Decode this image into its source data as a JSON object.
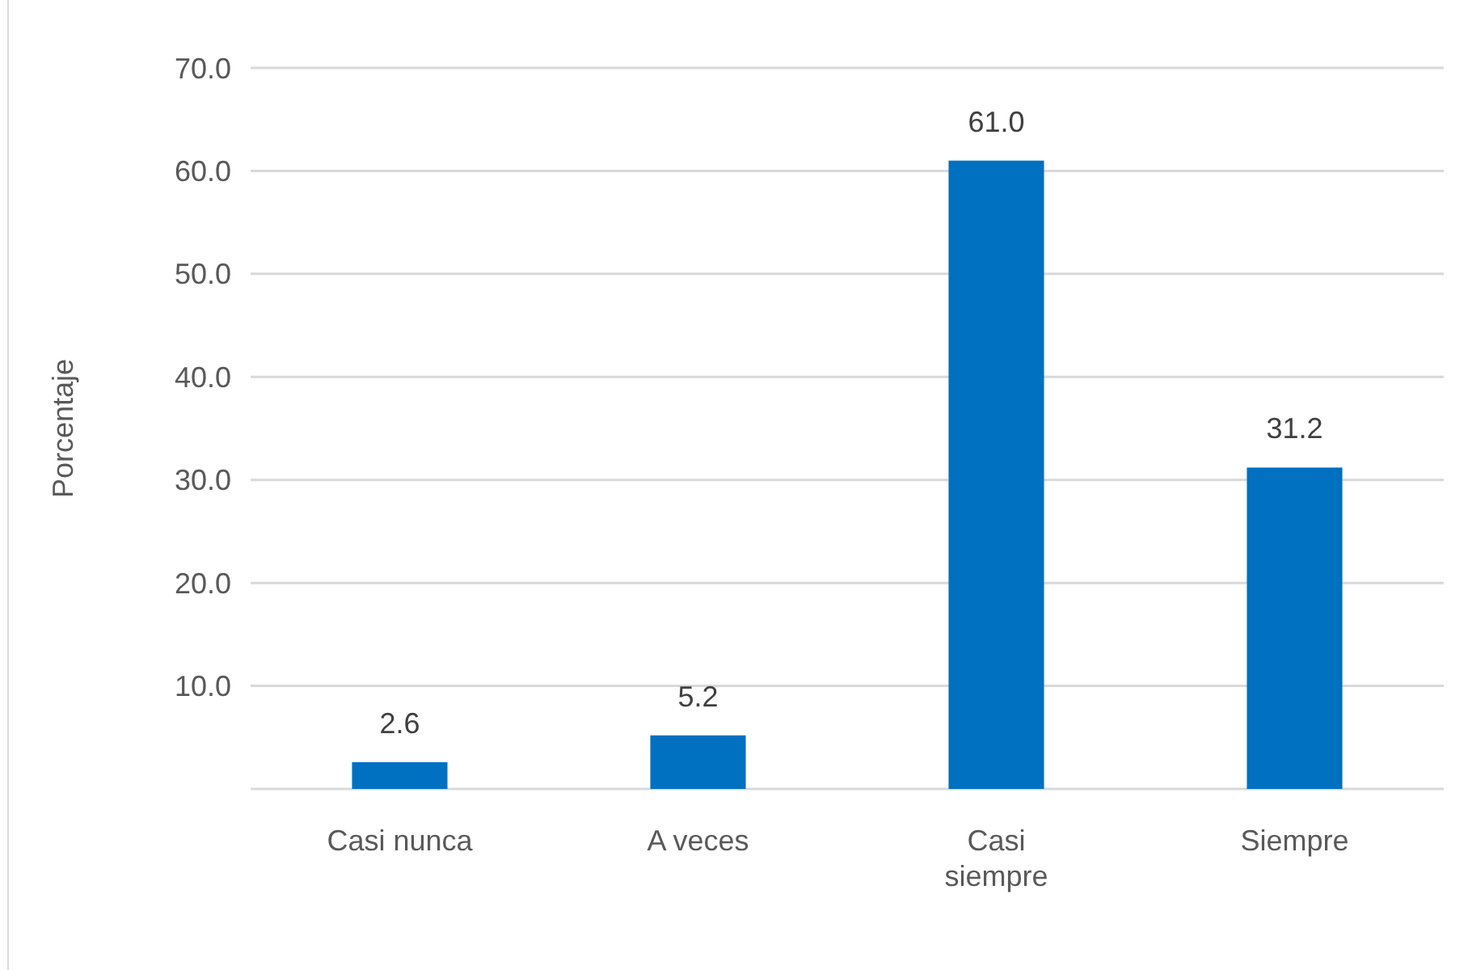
{
  "chart_data": {
    "type": "bar",
    "ylabel": "Porcentaje",
    "categories": [
      "Casi nunca",
      "A veces",
      "Casi siempre",
      "Siempre"
    ],
    "values": [
      2.6,
      5.2,
      61.0,
      31.2
    ],
    "color": "#0070c0",
    "ylim": [
      0,
      70
    ],
    "yticks": [
      {
        "value": 0,
        "label": null
      },
      {
        "value": 10,
        "label": "10.0"
      },
      {
        "value": 20,
        "label": "20.0"
      },
      {
        "value": 30,
        "label": "30.0"
      },
      {
        "value": 40,
        "label": "40.0"
      },
      {
        "value": 50,
        "label": "50.0"
      },
      {
        "value": 60,
        "label": "60.0"
      },
      {
        "value": 70,
        "label": "70.0"
      }
    ],
    "grid": "y",
    "value_labels": [
      "2.6",
      "5.2",
      "61.0",
      "31.2"
    ]
  }
}
